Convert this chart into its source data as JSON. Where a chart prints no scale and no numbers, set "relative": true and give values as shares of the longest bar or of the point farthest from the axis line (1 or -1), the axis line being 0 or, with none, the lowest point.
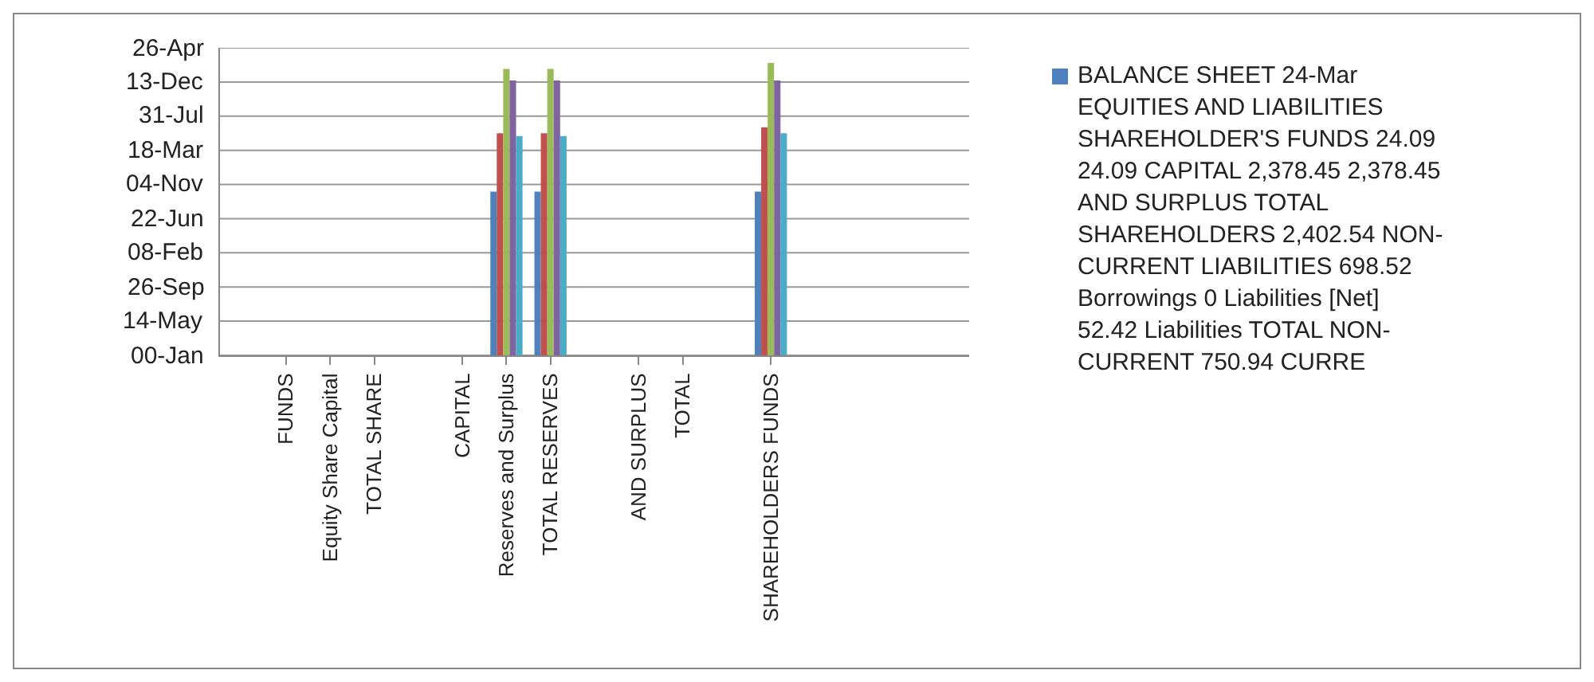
{
  "chart_data": {
    "type": "bar",
    "categories": [
      null,
      "FUNDS",
      "Equity Share Capital",
      "TOTAL SHARE",
      null,
      "CAPITAL",
      "Reserves and Surplus",
      "TOTAL RESERVES",
      null,
      "AND SURPLUS",
      "TOTAL",
      null,
      "SHAREHOLDERS FUNDS",
      null,
      null,
      null,
      null
    ],
    "series": [
      {
        "name": "BALANCE SHEET 24-Mar EQUITIES AND LIABILITIES SHAREHOLDER'S FUNDS 24.09 24.09 CAPITAL 2,378.45 2,378.45 AND SURPLUS TOTAL SHAREHOLDERS 2,402.54 NON-CURRENT LIABILITIES 698.52 Borrowings 0 Liabilities [Net] 52.42 Liabilities TOTAL NON- CURRENT 750.94 CURRE",
        "color": "#4f81bd",
        "values": [
          null,
          null,
          null,
          null,
          null,
          null,
          0.56,
          0.56,
          null,
          null,
          null,
          null,
          0.56,
          null,
          null,
          null,
          null
        ]
      },
      {
        "color": "#c0504d",
        "values": [
          null,
          null,
          null,
          null,
          null,
          null,
          0.76,
          0.76,
          null,
          null,
          null,
          null,
          0.78,
          null,
          null,
          null,
          null
        ]
      },
      {
        "color": "#9bbb59",
        "values": [
          null,
          null,
          null,
          null,
          null,
          null,
          0.98,
          0.98,
          null,
          null,
          null,
          null,
          1,
          null,
          null,
          null,
          null
        ]
      },
      {
        "color": "#8064a2",
        "values": [
          null,
          null,
          null,
          null,
          null,
          null,
          0.94,
          0.94,
          null,
          null,
          null,
          null,
          0.94,
          null,
          null,
          null,
          null
        ]
      },
      {
        "color": "#4bacc6",
        "values": [
          null,
          null,
          null,
          null,
          null,
          null,
          0.75,
          0.75,
          null,
          null,
          null,
          null,
          0.76,
          null,
          null,
          null,
          null
        ]
      }
    ],
    "relative": true,
    "annotations": [
      "00-Jan",
      "14-May",
      "26-Sep",
      "08-Feb",
      "22-Jun",
      "04-Nov",
      "18-Mar",
      "31-Jul",
      "13-Dec",
      "26-Apr"
    ],
    "grid": "y"
  }
}
